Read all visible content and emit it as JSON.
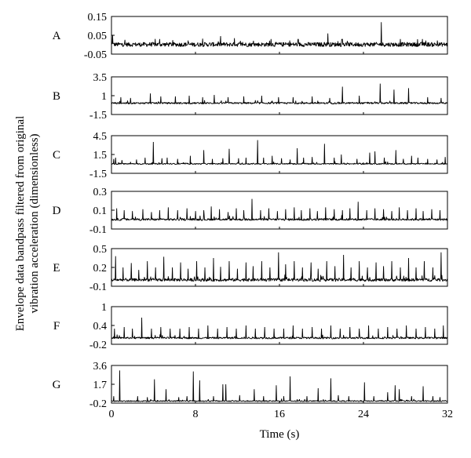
{
  "chart_data": {
    "type": "line",
    "ylabel_lines": [
      "Envelope data bandpass filtered from original",
      "vibration acceleration (dimensionless)"
    ],
    "xlabel": "Time (s)",
    "xlim": [
      0,
      32
    ],
    "xticks": [
      0,
      8,
      16,
      24,
      32
    ],
    "xtick_labels": [
      "0",
      "8",
      "16",
      "24",
      "32"
    ],
    "line_color": "#000000",
    "panels": [
      {
        "label": "A",
        "ylim": [
          -0.05,
          0.15
        ],
        "yticks": [
          -0.05,
          0.05,
          0.15
        ],
        "ytick_labels": [
          "-0.05",
          "0.05",
          "0.15"
        ],
        "baseline": 0.0,
        "noise": 0.012,
        "peaks": [
          [
            0.1,
            0.05
          ],
          [
            4.6,
            0.03
          ],
          [
            11.7,
            0.035
          ],
          [
            15.2,
            0.03
          ],
          [
            17.8,
            0.03
          ],
          [
            20.6,
            0.06
          ],
          [
            22.0,
            0.03
          ],
          [
            25.7,
            0.12
          ],
          [
            27.5,
            0.03
          ],
          [
            29.6,
            0.03
          ]
        ]
      },
      {
        "label": "B",
        "ylim": [
          -1.5,
          3.5
        ],
        "yticks": [
          -1.5,
          1,
          3.5
        ],
        "ytick_labels": [
          "-1.5",
          "1",
          "3.5"
        ],
        "baseline": 0.0,
        "noise": 0.12,
        "peaks": [
          [
            0.9,
            0.8
          ],
          [
            1.8,
            0.7
          ],
          [
            3.7,
            1.3
          ],
          [
            4.7,
            0.9
          ],
          [
            6.1,
            0.9
          ],
          [
            7.4,
            1.0
          ],
          [
            8.7,
            0.8
          ],
          [
            9.8,
            1.1
          ],
          [
            11.1,
            0.8
          ],
          [
            12.6,
            0.9
          ],
          [
            14.3,
            1.0
          ],
          [
            15.9,
            0.8
          ],
          [
            17.3,
            0.8
          ],
          [
            19.1,
            0.9
          ],
          [
            20.8,
            0.7
          ],
          [
            22.0,
            2.2
          ],
          [
            23.6,
            1.0
          ],
          [
            25.6,
            2.6
          ],
          [
            26.9,
            1.8
          ],
          [
            28.3,
            2.0
          ],
          [
            30.1,
            0.8
          ],
          [
            31.4,
            0.7
          ]
        ]
      },
      {
        "label": "C",
        "ylim": [
          -1.5,
          4.5
        ],
        "yticks": [
          -1.5,
          1.5,
          4.5
        ],
        "ytick_labels": [
          "-1.5",
          "1.5",
          "4.5"
        ],
        "baseline": 0.0,
        "noise": 0.1,
        "peaks": [
          [
            0.2,
            0.8
          ],
          [
            0.4,
            1.0
          ],
          [
            1.0,
            0.6
          ],
          [
            2.4,
            0.7
          ],
          [
            3.2,
            1.0
          ],
          [
            4.0,
            3.5
          ],
          [
            4.8,
            0.9
          ],
          [
            5.3,
            1.0
          ],
          [
            6.3,
            0.8
          ],
          [
            7.5,
            1.3
          ],
          [
            8.8,
            2.2
          ],
          [
            9.6,
            0.8
          ],
          [
            10.6,
            0.9
          ],
          [
            11.2,
            2.4
          ],
          [
            12.1,
            0.9
          ],
          [
            12.8,
            1.0
          ],
          [
            13.9,
            3.8
          ],
          [
            14.5,
            1.0
          ],
          [
            15.3,
            1.3
          ],
          [
            16.2,
            0.9
          ],
          [
            17.0,
            0.7
          ],
          [
            17.7,
            2.5
          ],
          [
            18.3,
            1.0
          ],
          [
            19.1,
            1.1
          ],
          [
            20.3,
            3.2
          ],
          [
            21.2,
            1.0
          ],
          [
            21.9,
            1.5
          ],
          [
            23.4,
            0.8
          ],
          [
            24.6,
            1.8
          ],
          [
            25.1,
            2.0
          ],
          [
            26.0,
            1.0
          ],
          [
            27.1,
            2.2
          ],
          [
            27.8,
            0.8
          ],
          [
            28.6,
            1.3
          ],
          [
            29.2,
            1.0
          ],
          [
            30.1,
            0.8
          ],
          [
            31.0,
            0.7
          ],
          [
            31.8,
            1.1
          ]
        ]
      },
      {
        "label": "D",
        "ylim": [
          -0.1,
          0.3
        ],
        "yticks": [
          -0.1,
          0.1,
          0.3
        ],
        "ytick_labels": [
          "-0.1",
          "0.1",
          "0.3"
        ],
        "baseline": 0.0,
        "noise": 0.012,
        "peaks": [
          [
            0.5,
            0.12
          ],
          [
            1.2,
            0.1
          ],
          [
            2.0,
            0.09
          ],
          [
            3.0,
            0.11
          ],
          [
            3.8,
            0.08
          ],
          [
            4.6,
            0.1
          ],
          [
            5.4,
            0.13
          ],
          [
            6.3,
            0.1
          ],
          [
            7.2,
            0.12
          ],
          [
            8.0,
            0.09
          ],
          [
            8.8,
            0.1
          ],
          [
            9.5,
            0.14
          ],
          [
            10.3,
            0.11
          ],
          [
            11.1,
            0.08
          ],
          [
            11.9,
            0.12
          ],
          [
            12.6,
            0.1
          ],
          [
            13.4,
            0.22
          ],
          [
            14.2,
            0.1
          ],
          [
            15.0,
            0.12
          ],
          [
            15.8,
            0.09
          ],
          [
            16.6,
            0.11
          ],
          [
            17.4,
            0.13
          ],
          [
            18.1,
            0.1
          ],
          [
            18.9,
            0.12
          ],
          [
            19.6,
            0.09
          ],
          [
            20.4,
            0.13
          ],
          [
            21.2,
            0.11
          ],
          [
            22.0,
            0.1
          ],
          [
            22.7,
            0.12
          ],
          [
            23.5,
            0.19
          ],
          [
            24.3,
            0.1
          ],
          [
            25.1,
            0.12
          ],
          [
            25.9,
            0.11
          ],
          [
            26.7,
            0.09
          ],
          [
            27.4,
            0.13
          ],
          [
            28.2,
            0.1
          ],
          [
            29.0,
            0.12
          ],
          [
            29.7,
            0.09
          ],
          [
            30.5,
            0.11
          ],
          [
            31.3,
            0.1
          ]
        ]
      },
      {
        "label": "E",
        "ylim": [
          -0.1,
          0.5
        ],
        "yticks": [
          -0.1,
          0.2,
          0.5
        ],
        "ytick_labels": [
          "-0.1",
          "0.2",
          "0.5"
        ],
        "baseline": 0.0,
        "noise": 0.025,
        "peaks": [
          [
            0.4,
            0.38
          ],
          [
            1.1,
            0.2
          ],
          [
            1.9,
            0.27
          ],
          [
            2.6,
            0.16
          ],
          [
            3.4,
            0.3
          ],
          [
            4.2,
            0.2
          ],
          [
            5.0,
            0.37
          ],
          [
            5.8,
            0.2
          ],
          [
            6.6,
            0.28
          ],
          [
            7.3,
            0.18
          ],
          [
            8.1,
            0.3
          ],
          [
            8.9,
            0.2
          ],
          [
            9.7,
            0.35
          ],
          [
            10.4,
            0.21
          ],
          [
            11.2,
            0.3
          ],
          [
            12.0,
            0.18
          ],
          [
            12.8,
            0.28
          ],
          [
            13.5,
            0.22
          ],
          [
            14.3,
            0.3
          ],
          [
            15.1,
            0.2
          ],
          [
            15.9,
            0.44
          ],
          [
            16.6,
            0.25
          ],
          [
            17.4,
            0.3
          ],
          [
            18.2,
            0.2
          ],
          [
            19.0,
            0.28
          ],
          [
            19.7,
            0.18
          ],
          [
            20.5,
            0.3
          ],
          [
            21.3,
            0.22
          ],
          [
            22.1,
            0.4
          ],
          [
            22.8,
            0.2
          ],
          [
            23.6,
            0.3
          ],
          [
            24.4,
            0.2
          ],
          [
            25.2,
            0.28
          ],
          [
            25.9,
            0.22
          ],
          [
            26.7,
            0.3
          ],
          [
            27.5,
            0.2
          ],
          [
            28.3,
            0.35
          ],
          [
            29.0,
            0.2
          ],
          [
            29.8,
            0.3
          ],
          [
            30.6,
            0.2
          ],
          [
            31.4,
            0.44
          ]
        ]
      },
      {
        "label": "F",
        "ylim": [
          -0.2,
          1
        ],
        "yticks": [
          -0.2,
          0.4,
          1
        ],
        "ytick_labels": [
          "-0.2",
          "0.4",
          "1"
        ],
        "baseline": 0.0,
        "noise": 0.03,
        "peaks": [
          [
            0.3,
            0.3
          ],
          [
            1.2,
            0.35
          ],
          [
            2.0,
            0.3
          ],
          [
            2.9,
            0.65
          ],
          [
            3.8,
            0.3
          ],
          [
            4.7,
            0.35
          ],
          [
            5.6,
            0.3
          ],
          [
            6.5,
            0.3
          ],
          [
            7.4,
            0.35
          ],
          [
            8.3,
            0.3
          ],
          [
            9.2,
            0.4
          ],
          [
            10.1,
            0.3
          ],
          [
            11.0,
            0.35
          ],
          [
            11.9,
            0.3
          ],
          [
            12.8,
            0.4
          ],
          [
            13.7,
            0.3
          ],
          [
            14.6,
            0.35
          ],
          [
            15.5,
            0.3
          ],
          [
            16.4,
            0.3
          ],
          [
            17.3,
            0.4
          ],
          [
            18.2,
            0.3
          ],
          [
            19.1,
            0.35
          ],
          [
            20.0,
            0.3
          ],
          [
            20.9,
            0.4
          ],
          [
            21.8,
            0.3
          ],
          [
            22.7,
            0.35
          ],
          [
            23.6,
            0.3
          ],
          [
            24.5,
            0.4
          ],
          [
            25.4,
            0.3
          ],
          [
            26.3,
            0.35
          ],
          [
            27.2,
            0.3
          ],
          [
            28.1,
            0.4
          ],
          [
            29.0,
            0.3
          ],
          [
            29.9,
            0.35
          ],
          [
            30.8,
            0.3
          ],
          [
            31.6,
            0.4
          ]
        ]
      },
      {
        "label": "G",
        "ylim": [
          -0.2,
          3.6
        ],
        "yticks": [
          -0.2,
          1.7,
          3.6
        ],
        "ytick_labels": [
          "-0.2",
          "1.7",
          "3.6"
        ],
        "baseline": 0.0,
        "noise": 0.06,
        "peaks": [
          [
            0.2,
            0.5
          ],
          [
            0.8,
            3.1
          ],
          [
            2.5,
            0.5
          ],
          [
            3.4,
            0.4
          ],
          [
            4.1,
            2.2
          ],
          [
            5.2,
            1.2
          ],
          [
            6.4,
            0.4
          ],
          [
            7.2,
            0.5
          ],
          [
            7.8,
            3.0
          ],
          [
            8.4,
            2.1
          ],
          [
            9.7,
            0.5
          ],
          [
            10.6,
            1.7
          ],
          [
            10.9,
            1.7
          ],
          [
            12.2,
            0.6
          ],
          [
            13.6,
            1.2
          ],
          [
            14.5,
            0.5
          ],
          [
            15.7,
            1.6
          ],
          [
            16.4,
            0.5
          ],
          [
            17.0,
            2.5
          ],
          [
            18.6,
            0.5
          ],
          [
            19.7,
            1.3
          ],
          [
            20.9,
            2.3
          ],
          [
            21.6,
            0.6
          ],
          [
            22.6,
            0.5
          ],
          [
            24.1,
            1.9
          ],
          [
            25.0,
            0.5
          ],
          [
            26.3,
            0.9
          ],
          [
            27.0,
            1.6
          ],
          [
            27.4,
            1.2
          ],
          [
            28.6,
            0.5
          ],
          [
            29.7,
            1.5
          ],
          [
            30.6,
            0.5
          ],
          [
            31.3,
            0.4
          ]
        ]
      }
    ]
  }
}
